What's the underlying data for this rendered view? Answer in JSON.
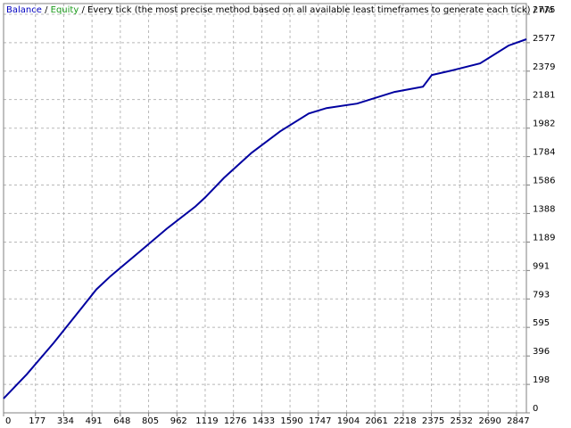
{
  "chart_data": {
    "type": "line",
    "equity_label": "Equity",
    "equity_color": "#1a9a1a",
    "separator": "/",
    "title": "Every tick (the most precise method based on all available least timeframes to generate each tick)",
    "subtitle": "n/a",
    "x": [
      0,
      129,
      277,
      436,
      515,
      594,
      753,
      906,
      1065,
      1119,
      1223,
      1377,
      1535,
      1694,
      1793,
      1962,
      2170,
      2328,
      2377,
      2486,
      2645,
      2803,
      2902
    ],
    "series": [
      {
        "name": "Balance",
        "color": "#0000a0",
        "values": [
          100,
          268,
          485,
          734,
          859,
          952,
          1120,
          1282,
          1437,
          1500,
          1636,
          1811,
          1960,
          2084,
          2122,
          2153,
          2234,
          2271,
          2352,
          2383,
          2433,
          2557,
          2601
        ]
      }
    ],
    "xlim": [
      0,
      2902
    ],
    "ylim": [
      0,
      2775
    ],
    "xticks": [
      0,
      177,
      334,
      491,
      648,
      805,
      962,
      1119,
      1276,
      1433,
      1590,
      1747,
      1904,
      2061,
      2218,
      2375,
      2532,
      2690,
      2847
    ],
    "yticks": [
      0,
      198,
      396,
      595,
      793,
      991,
      1189,
      1388,
      1586,
      1784,
      1982,
      2181,
      2379,
      2577,
      2775
    ],
    "grid": true
  }
}
